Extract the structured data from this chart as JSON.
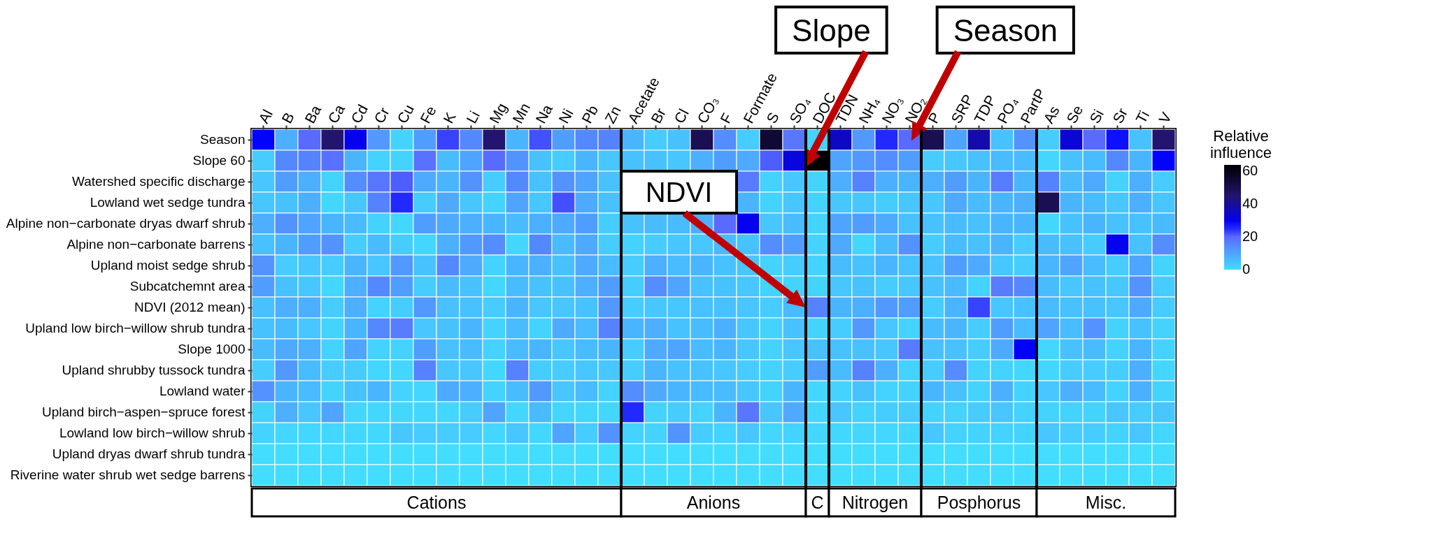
{
  "chart_data": {
    "type": "heatmap",
    "categories": [
      "Al",
      "B",
      "Ba",
      "Ca",
      "Cd",
      "Cr",
      "Cu",
      "Fe",
      "K",
      "Li",
      "Mg",
      "Mn",
      "Na",
      "Ni",
      "Pb",
      "Zn",
      "Acetate",
      "Br",
      "Cl",
      "CO₃",
      "F",
      "Formate",
      "S",
      "SO₄",
      "DOC",
      "TDN",
      "NH₄",
      "NO₃",
      "NO₂",
      "P",
      "SRP",
      "TDP",
      "PO₄",
      "PartP",
      "As",
      "Se",
      "Si",
      "Sr",
      "Ti",
      "V"
    ],
    "y_categories": [
      "Season",
      "Slope 60",
      "Watershed specific discharge",
      "Lowland wet sedge tundra",
      "Alpine non−carbonate dryas dwarf shrub",
      "Alpine non−carbonate barrens",
      "Upland moist sedge shrub",
      "Subcatchemnt area",
      "NDVI (2012 mean)",
      "Upland low birch−willow shrub tundra",
      "Slope 1000",
      "Upland shrubby tussock tundra",
      "Lowland water",
      "Upland birch−aspen−spruce forest",
      "Lowland low birch−willow shrub",
      "Upland dryas dwarf shrub tundra",
      "Riverine water shrub wet sedge barrens"
    ],
    "cells": [
      [
        28,
        8,
        20,
        45,
        30,
        12,
        2,
        11,
        23,
        15,
        45,
        7,
        22,
        11,
        15,
        16,
        7,
        3,
        5,
        50,
        14,
        3,
        55,
        18,
        2,
        35,
        12,
        25,
        20,
        50,
        10,
        38,
        5,
        13,
        3,
        33,
        20,
        27,
        5,
        45
      ],
      [
        3,
        15,
        16,
        19,
        7,
        2,
        2,
        19,
        6,
        10,
        20,
        13,
        5,
        3,
        7,
        4,
        5,
        5,
        4,
        8,
        11,
        9,
        21,
        32,
        64,
        10,
        12,
        14,
        11,
        3,
        4,
        5,
        6,
        6,
        1,
        5,
        6,
        15,
        7,
        28
      ],
      [
        4,
        11,
        8,
        2,
        14,
        18,
        21,
        9,
        7,
        13,
        3,
        15,
        5,
        13,
        10,
        5,
        null,
        null,
        null,
        null,
        null,
        17,
        2,
        4,
        2,
        8,
        16,
        8,
        7,
        8,
        11,
        7,
        17,
        7,
        16,
        6,
        9,
        2,
        8,
        3
      ],
      [
        4,
        5,
        8,
        1,
        4,
        16,
        25,
        3,
        9,
        4,
        2,
        10,
        4,
        22,
        9,
        5,
        null,
        null,
        null,
        null,
        null,
        7,
        2,
        4,
        2,
        4,
        4,
        3,
        4,
        4,
        9,
        6,
        7,
        8,
        50,
        7,
        6,
        4,
        8,
        4
      ],
      [
        8,
        13,
        10,
        7,
        6,
        2,
        1,
        11,
        9,
        8,
        7,
        6,
        8,
        9,
        11,
        3,
        5,
        6,
        6,
        8,
        20,
        30,
        4,
        6,
        2,
        10,
        11,
        9,
        5,
        5,
        6,
        5,
        7,
        7,
        1,
        5,
        7,
        5,
        5,
        6
      ],
      [
        5,
        7,
        11,
        13,
        3,
        6,
        3,
        1,
        8,
        12,
        14,
        1,
        15,
        6,
        9,
        3,
        2,
        3,
        4,
        4,
        6,
        5,
        14,
        11,
        2,
        9,
        1,
        6,
        13,
        3,
        6,
        5,
        7,
        3,
        6,
        5,
        3,
        30,
        5,
        14
      ],
      [
        13,
        3,
        4,
        3,
        7,
        4,
        12,
        5,
        15,
        9,
        2,
        7,
        8,
        5,
        9,
        6,
        3,
        8,
        6,
        7,
        5,
        4,
        2,
        3,
        2,
        6,
        5,
        7,
        5,
        5,
        11,
        9,
        4,
        3,
        7,
        10,
        6,
        3,
        10,
        2
      ],
      [
        11,
        5,
        4,
        1,
        8,
        15,
        11,
        3,
        6,
        5,
        1,
        6,
        5,
        5,
        8,
        11,
        3,
        14,
        10,
        5,
        5,
        4,
        2,
        2,
        2,
        4,
        5,
        3,
        4,
        5,
        6,
        2,
        17,
        15,
        6,
        4,
        5,
        4,
        13,
        3
      ],
      [
        5,
        8,
        8,
        3,
        8,
        2,
        3,
        12,
        5,
        5,
        3,
        7,
        4,
        4,
        5,
        12,
        3,
        4,
        4,
        5,
        5,
        4,
        3,
        6,
        16,
        7,
        8,
        12,
        11,
        3,
        7,
        23,
        4,
        5,
        6,
        5,
        5,
        4,
        9,
        3
      ],
      [
        5,
        6,
        4,
        2,
        7,
        15,
        17,
        4,
        5,
        7,
        2,
        6,
        2,
        9,
        6,
        16,
        7,
        8,
        5,
        6,
        8,
        4,
        2,
        5,
        2,
        3,
        12,
        4,
        2,
        6,
        7,
        3,
        11,
        6,
        10,
        6,
        13,
        2,
        5,
        2
      ],
      [
        6,
        9,
        8,
        2,
        10,
        2,
        2,
        11,
        5,
        6,
        2,
        6,
        7,
        4,
        6,
        7,
        3,
        9,
        10,
        6,
        7,
        4,
        2,
        4,
        5,
        5,
        5,
        4,
        17,
        5,
        5,
        3,
        9,
        29,
        1,
        5,
        6,
        2,
        7,
        2
      ],
      [
        3,
        12,
        6,
        3,
        3,
        1,
        1,
        16,
        4,
        4,
        1,
        16,
        3,
        3,
        4,
        4,
        3,
        7,
        5,
        5,
        4,
        3,
        2,
        3,
        11,
        6,
        16,
        8,
        2,
        3,
        14,
        2,
        2,
        1,
        1,
        3,
        3,
        3,
        8,
        1
      ],
      [
        13,
        7,
        6,
        2,
        5,
        7,
        2,
        1,
        9,
        8,
        2,
        6,
        12,
        4,
        6,
        2,
        14,
        9,
        7,
        6,
        6,
        4,
        2,
        7,
        1,
        2,
        5,
        2,
        2,
        7,
        5,
        2,
        8,
        2,
        4,
        8,
        6,
        2,
        8,
        2
      ],
      [
        2,
        8,
        4,
        10,
        1,
        1,
        1,
        1,
        1,
        3,
        10,
        1,
        6,
        1,
        1,
        1,
        25,
        2,
        3,
        2,
        7,
        18,
        4,
        9,
        1,
        4,
        2,
        3,
        3,
        2,
        2,
        3,
        4,
        2,
        2,
        2,
        2,
        4,
        3,
        4
      ],
      [
        2,
        1,
        1,
        1,
        1,
        1,
        4,
        3,
        3,
        3,
        1,
        4,
        1,
        10,
        3,
        13,
        2,
        2,
        13,
        3,
        2,
        4,
        1,
        2,
        1,
        1,
        1,
        1,
        1,
        4,
        2,
        2,
        2,
        2,
        4,
        3,
        3,
        2,
        4,
        1
      ],
      [
        0,
        0,
        0,
        0,
        0,
        0,
        0,
        0,
        0,
        0,
        0,
        0,
        0,
        0,
        0,
        0,
        0,
        0,
        0,
        0,
        0,
        0,
        0,
        0,
        0,
        0,
        0,
        0,
        0,
        0,
        0,
        0,
        0,
        0,
        0,
        0,
        0,
        0,
        0,
        0
      ],
      [
        0,
        0,
        0,
        0,
        0,
        0,
        0,
        0,
        0,
        0,
        0,
        0,
        0,
        0,
        0,
        0,
        0,
        0,
        0,
        0,
        0,
        0,
        0,
        0,
        0,
        0,
        0,
        0,
        0,
        0,
        0,
        0,
        0,
        0,
        0,
        0,
        0,
        0,
        0,
        0
      ]
    ],
    "clim": [
      0,
      64
    ],
    "cticks": [
      0,
      20,
      40,
      60
    ],
    "clabel": "Relative influence",
    "annotations": [
      "Slope",
      "NDVI",
      "Season",
      "Cations",
      "Anions",
      "C",
      "Nitrogen",
      "Posphorus",
      "Misc."
    ]
  }
}
